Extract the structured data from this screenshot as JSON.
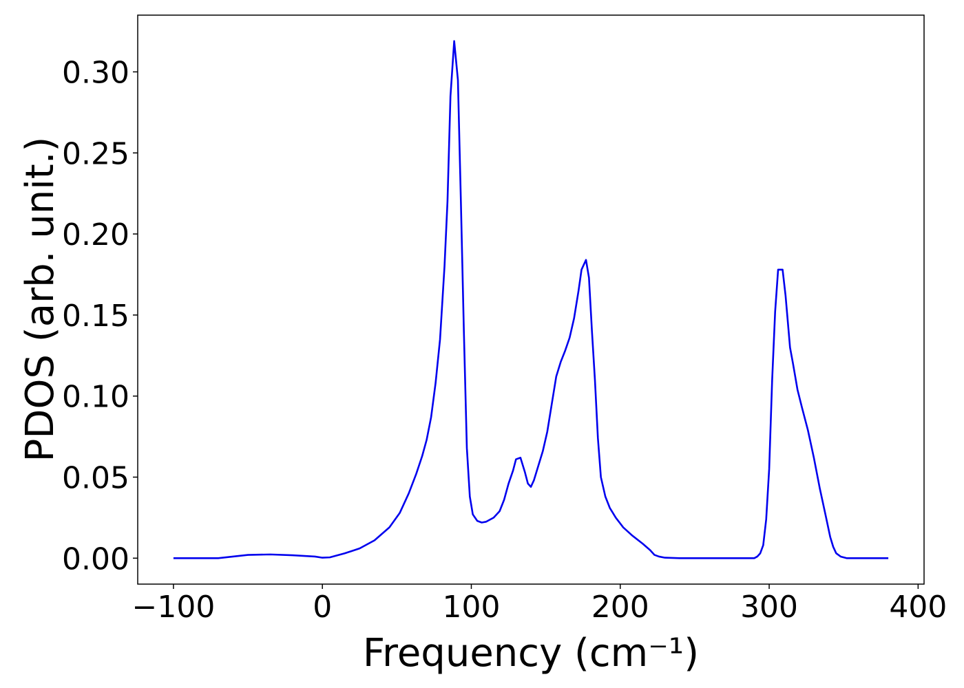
{
  "chart_data": {
    "type": "line",
    "x_label": "Frequency (cm⁻¹)",
    "y_label": "PDOS (arb. unit.)",
    "xlim": [
      -124,
      404
    ],
    "ylim": [
      -0.016,
      0.335
    ],
    "xticks": [
      {
        "value": -100,
        "label": "−100"
      },
      0,
      100,
      200,
      300,
      400
    ],
    "yticks": [
      {
        "value": 0,
        "label": "0.00"
      },
      {
        "value": 0.05,
        "label": "0.05"
      },
      {
        "value": 0.1,
        "label": "0.10"
      },
      {
        "value": 0.15,
        "label": "0.15"
      },
      {
        "value": 0.2,
        "label": "0.20"
      },
      {
        "value": 0.25,
        "label": "0.25"
      },
      {
        "value": 0.3,
        "label": "0.30"
      }
    ],
    "grid": false,
    "x": [
      -100,
      -70,
      -60,
      -50,
      -35,
      -20,
      -5,
      0,
      5,
      15,
      25,
      35,
      45,
      52,
      58,
      63,
      67,
      70,
      73,
      76,
      79,
      82,
      84,
      86,
      88.5,
      91,
      93,
      95,
      97,
      99,
      101,
      104,
      107,
      110,
      115,
      119,
      122,
      125,
      128,
      130,
      133,
      136,
      138,
      140,
      142,
      145,
      148,
      151,
      154,
      157,
      160,
      163,
      166,
      169,
      172,
      174,
      177,
      179,
      181,
      183,
      185,
      187,
      190,
      193,
      197,
      202,
      208,
      215,
      220,
      223,
      226,
      230,
      240,
      290,
      292,
      294,
      296,
      298,
      300,
      302,
      304,
      306,
      309,
      311,
      314,
      316,
      319,
      322,
      326,
      330,
      334,
      338,
      341,
      343,
      345,
      348,
      352,
      380
    ],
    "series": [
      {
        "color": "#0000ee",
        "values": [
          0,
          0,
          0.001,
          0.002,
          0.0023,
          0.0018,
          0.001,
          0.0003,
          0.0005,
          0.003,
          0.006,
          0.011,
          0.019,
          0.028,
          0.04,
          0.052,
          0.063,
          0.073,
          0.087,
          0.108,
          0.135,
          0.18,
          0.22,
          0.285,
          0.319,
          0.295,
          0.22,
          0.14,
          0.068,
          0.038,
          0.027,
          0.023,
          0.022,
          0.0225,
          0.025,
          0.029,
          0.036,
          0.046,
          0.054,
          0.061,
          0.062,
          0.053,
          0.046,
          0.044,
          0.048,
          0.057,
          0.066,
          0.078,
          0.095,
          0.112,
          0.121,
          0.128,
          0.136,
          0.148,
          0.165,
          0.178,
          0.184,
          0.173,
          0.14,
          0.11,
          0.074,
          0.05,
          0.038,
          0.031,
          0.025,
          0.019,
          0.014,
          0.009,
          0.005,
          0.002,
          0.001,
          0.0003,
          0,
          0,
          0.001,
          0.003,
          0.008,
          0.024,
          0.055,
          0.11,
          0.152,
          0.178,
          0.178,
          0.162,
          0.13,
          0.12,
          0.104,
          0.093,
          0.079,
          0.062,
          0.043,
          0.026,
          0.013,
          0.007,
          0.003,
          0.001,
          0,
          0
        ]
      }
    ]
  }
}
